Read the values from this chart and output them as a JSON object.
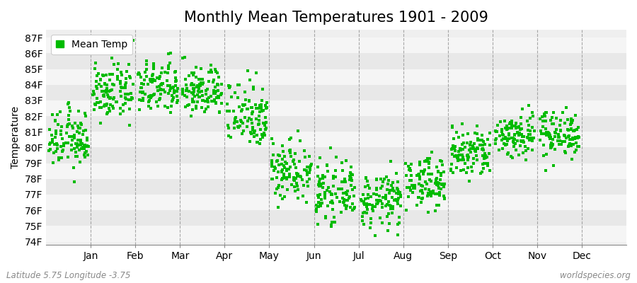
{
  "title": "Monthly Mean Temperatures 1901 - 2009",
  "ylabel": "Temperature",
  "months": [
    "Jan",
    "Feb",
    "Mar",
    "Apr",
    "May",
    "Jun",
    "Jul",
    "Aug",
    "Sep",
    "Oct",
    "Nov",
    "Dec"
  ],
  "month_tick_positions": [
    1,
    2,
    3,
    4,
    5,
    6,
    7,
    8,
    9,
    10,
    11,
    12
  ],
  "y_ticks": [
    74,
    75,
    76,
    77,
    78,
    79,
    80,
    81,
    82,
    83,
    84,
    85,
    86,
    87
  ],
  "y_tick_labels": [
    "74F",
    "75F",
    "76F",
    "77F",
    "78F",
    "79F",
    "80F",
    "81F",
    "82F",
    "83F",
    "84F",
    "85F",
    "86F",
    "87F"
  ],
  "ylim": [
    73.8,
    87.5
  ],
  "xlim": [
    0,
    13
  ],
  "marker_color": "#00bb00",
  "marker": "s",
  "marker_size": 2.5,
  "bg_color": "#efefef",
  "band_color_light": "#f5f5f5",
  "band_color_dark": "#e8e8e8",
  "vline_color": "#888888",
  "legend_label": "Mean Temp",
  "footer_left": "Latitude 5.75 Longitude -3.75",
  "footer_right": "worldspecies.org",
  "title_fontsize": 15,
  "axis_fontsize": 10,
  "footer_fontsize": 8.5,
  "n_years": 109,
  "month_means": [
    80.5,
    83.5,
    83.8,
    83.6,
    82.2,
    78.6,
    77.1,
    76.6,
    77.8,
    79.6,
    80.8,
    80.9
  ],
  "month_stds": [
    0.9,
    0.85,
    0.85,
    0.8,
    1.1,
    1.0,
    0.85,
    0.85,
    0.8,
    0.85,
    0.75,
    0.75
  ]
}
